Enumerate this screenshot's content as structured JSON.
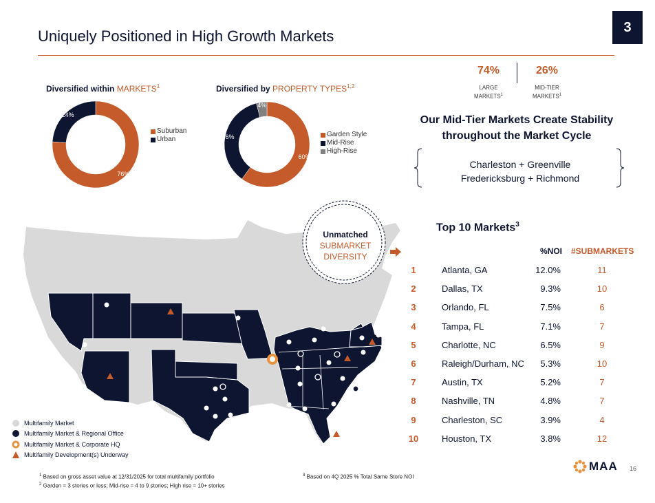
{
  "header": {
    "title": "Uniquely Positioned in High Growth Markets",
    "page_badge": "3"
  },
  "markets_chart": {
    "heading_prefix": "Diversified within ",
    "heading_accent": "MARKETS",
    "heading_sup": "1",
    "labels": {
      "urban": "24%",
      "suburban": "76%"
    },
    "legend": [
      "Suburban",
      "Urban"
    ],
    "colors": {
      "suburban": "#c55a2a",
      "urban": "#0d1530"
    }
  },
  "property_chart": {
    "heading_prefix": "Diversified by ",
    "heading_accent": "PROPERTY TYPES",
    "heading_sup": "1,2",
    "labels": {
      "high_rise": "4%",
      "mid_rise": "36%",
      "garden": "60%"
    },
    "legend": [
      "Garden Style",
      "Mid-Rise",
      "High-Rise"
    ],
    "colors": {
      "garden": "#c55a2a",
      "mid_rise": "#0d1530",
      "high_rise": "#808080"
    }
  },
  "chart_data": [
    {
      "type": "pie",
      "categories": [
        "Suburban",
        "Urban"
      ],
      "values": [
        76,
        24
      ]
    },
    {
      "type": "pie",
      "categories": [
        "Garden Style",
        "Mid-Rise",
        "High-Rise"
      ],
      "values": [
        60,
        36,
        4
      ]
    }
  ],
  "stats": {
    "large": {
      "value": "74%",
      "label_line1": "LARGE",
      "label_line2": "MARKETS",
      "sup": "1"
    },
    "mid": {
      "value": "26%",
      "label_line1": "MID-TIER",
      "label_line2": "MARKETS",
      "sup": "1"
    }
  },
  "stability": {
    "line1": "Our Mid-Tier Markets Create Stability",
    "line2": "throughout the Market Cycle",
    "markets_line1": "Charleston + Greenville",
    "markets_line2": "Fredericksburg + Richmond"
  },
  "callout": {
    "line1": "Unmatched",
    "line2": "SUBMARKET",
    "line3": "DIVERSITY"
  },
  "top10": {
    "title": "Top 10 Markets",
    "title_sup": "3",
    "col_noi": "%NOI",
    "col_sub": "#SUBMARKETS",
    "rows": [
      {
        "rank": "1",
        "name": "Atlanta, GA",
        "noi": "12.0%",
        "sub": "11"
      },
      {
        "rank": "2",
        "name": "Dallas, TX",
        "noi": "9.3%",
        "sub": "10"
      },
      {
        "rank": "3",
        "name": "Orlando, FL",
        "noi": "7.5%",
        "sub": "6"
      },
      {
        "rank": "4",
        "name": "Tampa, FL",
        "noi": "7.1%",
        "sub": "7"
      },
      {
        "rank": "5",
        "name": "Charlotte, NC",
        "noi": "6.5%",
        "sub": "9"
      },
      {
        "rank": "6",
        "name": "Raleigh/Durham, NC",
        "noi": "5.3%",
        "sub": "10"
      },
      {
        "rank": "7",
        "name": "Austin, TX",
        "noi": "5.2%",
        "sub": "7"
      },
      {
        "rank": "8",
        "name": "Nashville, TN",
        "noi": "4.8%",
        "sub": "7"
      },
      {
        "rank": "9",
        "name": "Charleston, SC",
        "noi": "3.9%",
        "sub": "4"
      },
      {
        "rank": "10",
        "name": "Houston, TX",
        "noi": "3.8%",
        "sub": "12"
      }
    ]
  },
  "map_legend": [
    {
      "icon": "white-dot-icon",
      "label": "Multifamily Market"
    },
    {
      "icon": "navy-dot-icon",
      "label": "Multifamily Market & Regional Office"
    },
    {
      "icon": "sun-hq-icon",
      "label": "Multifamily Market & Corporate HQ"
    },
    {
      "icon": "orange-triangle-icon",
      "label": "Multifamily Development(s) Underway"
    }
  ],
  "footnotes": {
    "f1_sup": "1",
    "f1": " Based on gross asset value at 12/31/2025 for total multifamily portfolio",
    "f2_sup": "2",
    "f2": " Garden = 3 stories or less; Mid-rise = 4 to 9 stories; High rise = 10+ stories",
    "f3_sup": "3",
    "f3": " Based on 4Q 2025 % Total Same Store NOI"
  },
  "brand": {
    "logo_text": "MAA",
    "page_number": "16"
  }
}
